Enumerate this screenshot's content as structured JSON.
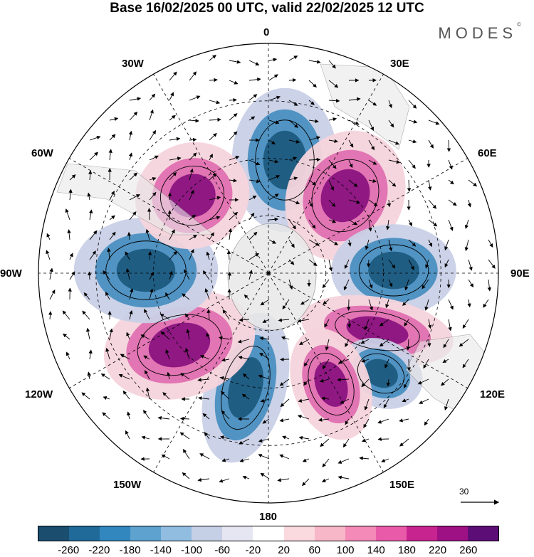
{
  "title": "Base 16/02/2025 00 UTC, valid 22/02/2025 12 UTC",
  "logo": {
    "text": "MODES",
    "mark": "©"
  },
  "map": {
    "projection": "south polar stereographic",
    "longitude_labels": {
      "lon_0": "0",
      "lon_30e": "30E",
      "lon_60e": "60E",
      "lon_90e": "90E",
      "lon_120e": "120E",
      "lon_150e": "150E",
      "lon_180": "180",
      "lon_150w": "150W",
      "lon_120w": "120W",
      "lon_90w": "90W",
      "lon_60w": "60W",
      "lon_30w": "30W"
    },
    "reference_vector": {
      "label": "30"
    },
    "field_colors": {
      "strong_negative": "#1d5a80",
      "negative": "#4a8fc0",
      "weak_negative": "#c9d0e6",
      "weak_positive": "#f6d4dc",
      "positive": "#e070b0",
      "strong_positive": "#8a137f",
      "land": "#e8e8e8"
    }
  },
  "colorbar": {
    "colors": [
      "#1b4e6e",
      "#1f6a98",
      "#3387bf",
      "#5ea2d0",
      "#91bde0",
      "#c5cfe6",
      "#e6e6f2",
      "#ffffff",
      "#fadadf",
      "#f7b7c9",
      "#f48ab8",
      "#e95ba9",
      "#c8248f",
      "#9e1185",
      "#5d0d76"
    ],
    "ticks": [
      "-260",
      "-220",
      "-180",
      "-140",
      "-100",
      "-60",
      "-20",
      "20",
      "60",
      "100",
      "140",
      "180",
      "220",
      "260"
    ]
  }
}
